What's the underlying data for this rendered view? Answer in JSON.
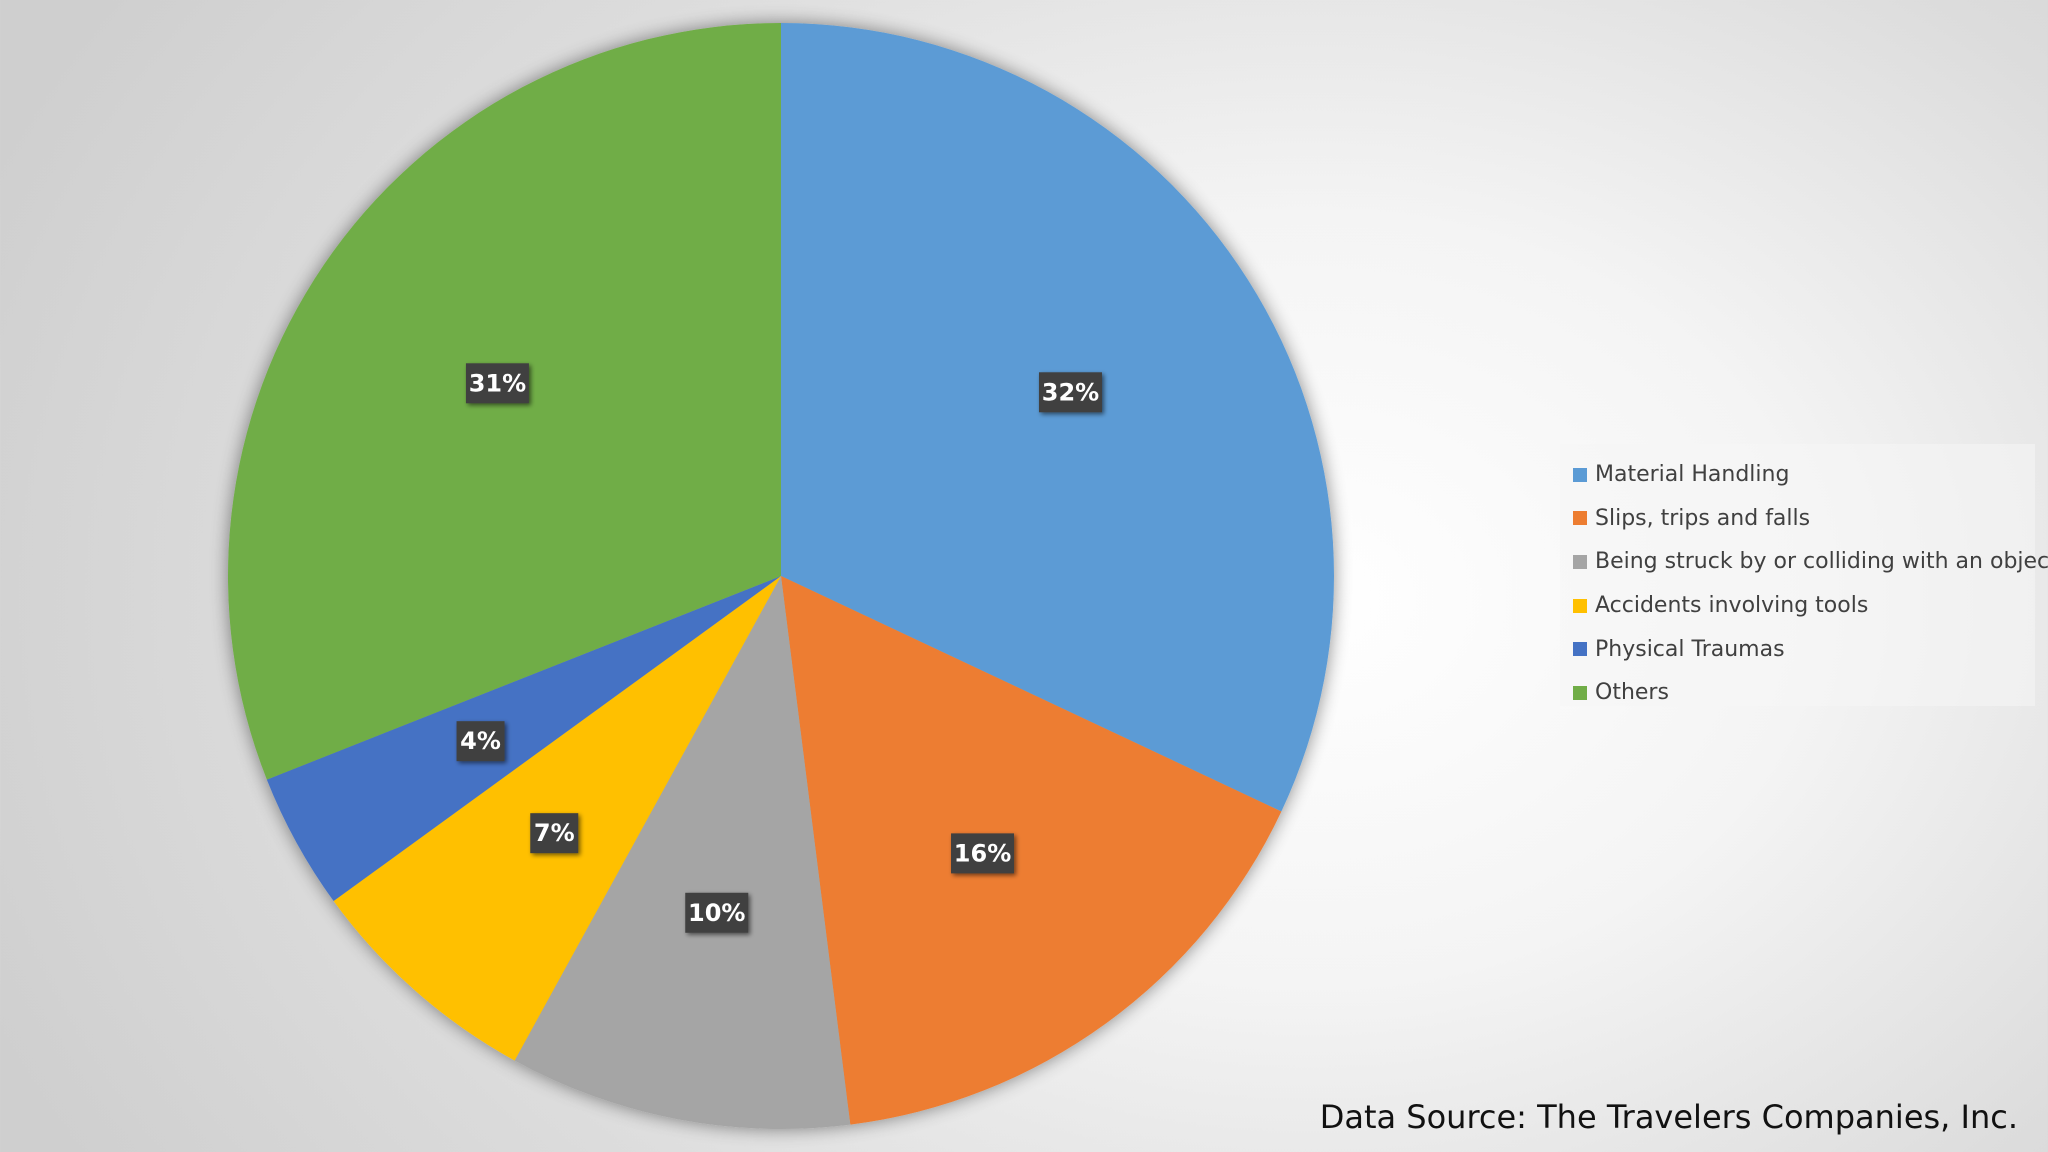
{
  "chart_data": {
    "type": "pie",
    "title": "",
    "categories": [
      "Material Handling",
      "Slips, trips and falls",
      "Being struck by or colliding with an object",
      "Accidents involving tools",
      "Physical Traumas",
      "Others"
    ],
    "values": [
      32,
      16,
      10,
      7,
      4,
      31
    ],
    "data_labels": [
      "32%",
      "16%",
      "10%",
      "7%",
      "4%",
      "31%"
    ],
    "colors": [
      "#5B9BD5",
      "#ED7D31",
      "#A5A5A5",
      "#FFC000",
      "#4472C4",
      "#70AD47"
    ],
    "start_angle_deg": 0,
    "direction": "clockwise",
    "legend_position": "right"
  },
  "source_note": "Data Source: The Travelers Companies, Inc."
}
